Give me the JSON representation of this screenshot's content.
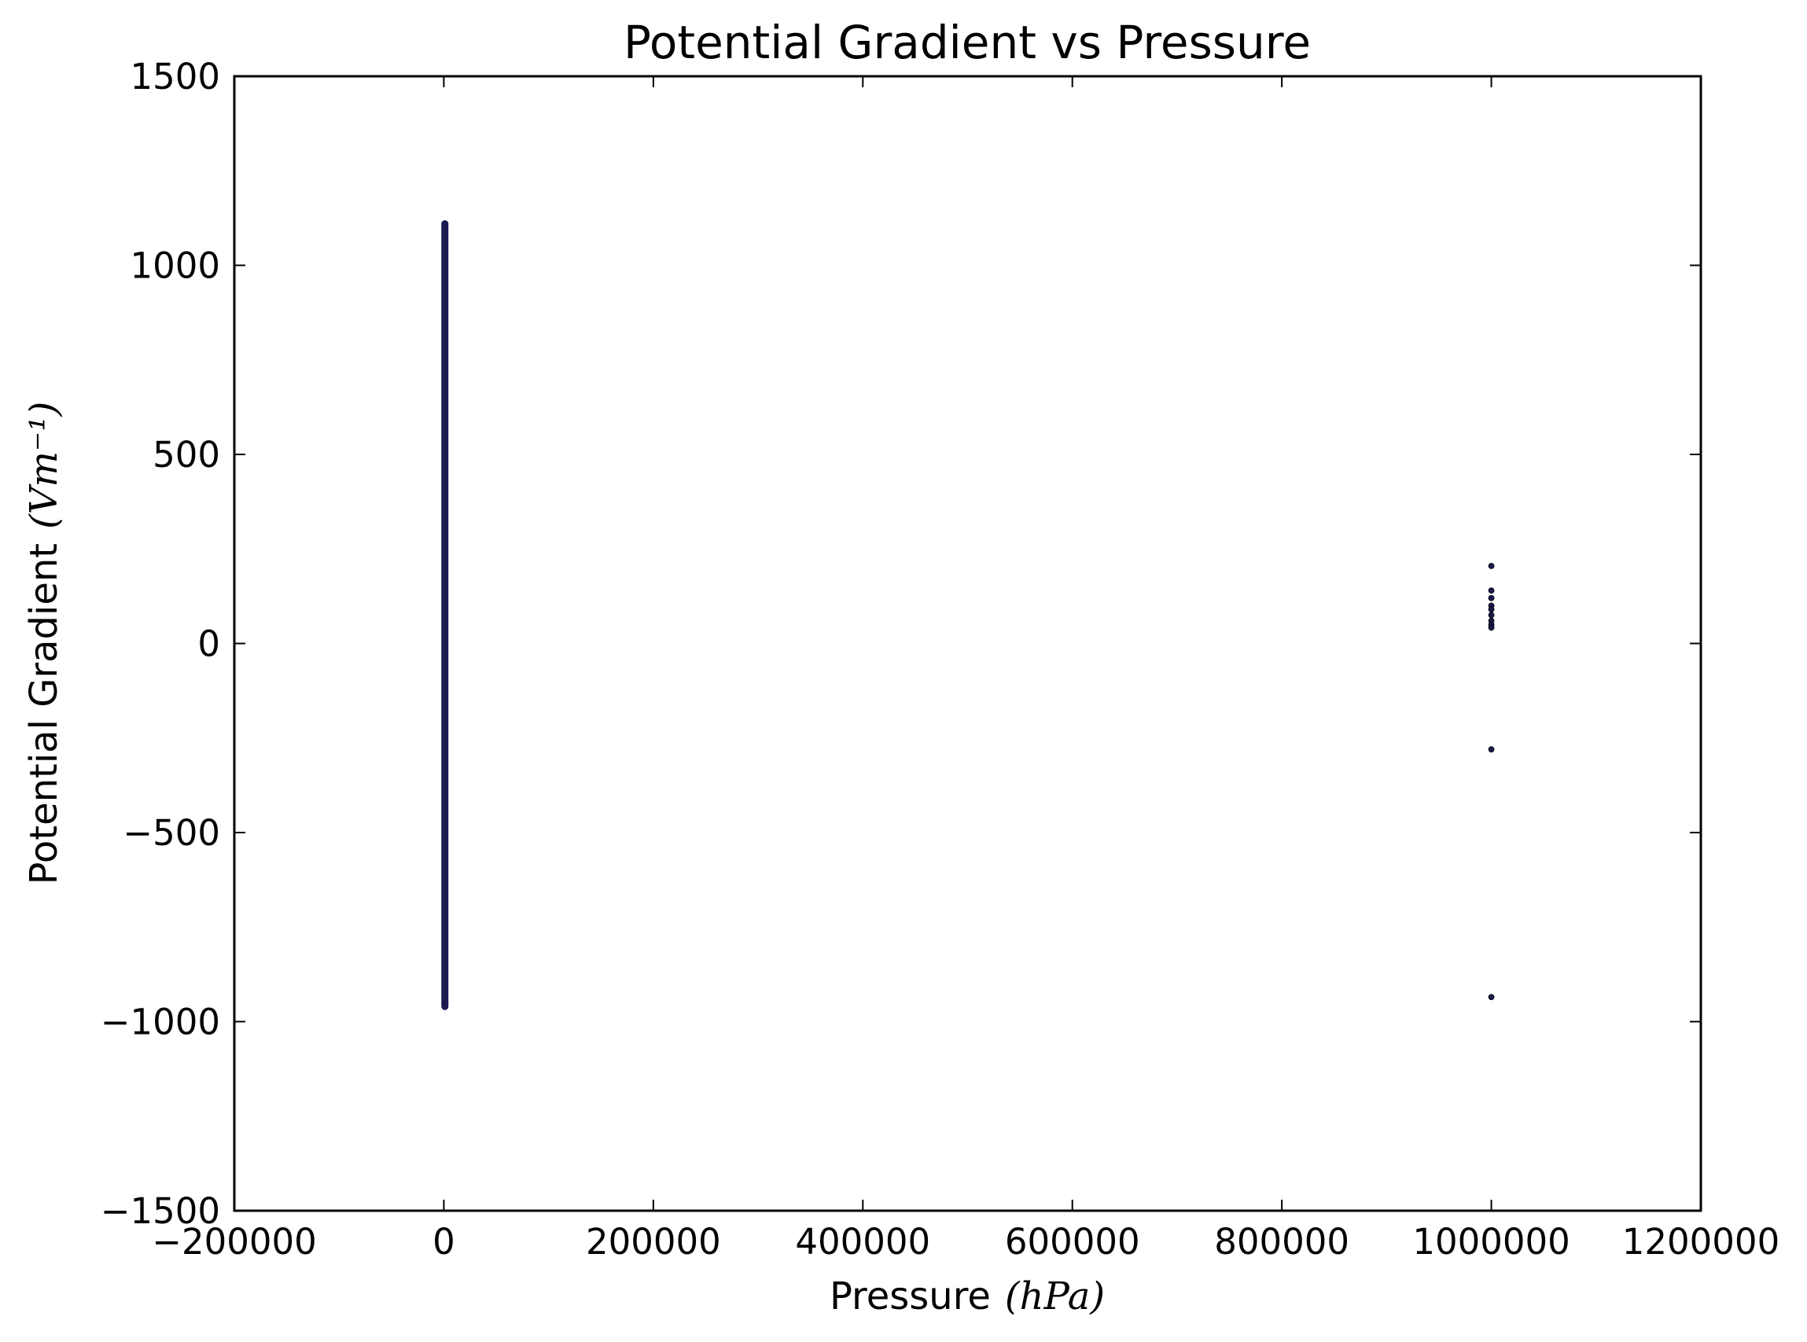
{
  "chart_data": {
    "type": "scatter",
    "title": "Potential Gradient vs Pressure",
    "xlabel": "Pressure",
    "xlabel_unit": "(hPa)",
    "ylabel": "Potential Gradient",
    "ylabel_unit": "(Vm⁻¹)",
    "xlim": [
      -200000,
      1200000
    ],
    "ylim": [
      -1500,
      1500
    ],
    "xticks": [
      -200000,
      0,
      200000,
      400000,
      600000,
      800000,
      1000000,
      1200000
    ],
    "xtick_labels": [
      "−200000",
      "0",
      "200000",
      "400000",
      "600000",
      "800000",
      "1000000",
      "1200000"
    ],
    "yticks": [
      -1500,
      -1000,
      -500,
      0,
      500,
      1000,
      1500
    ],
    "ytick_labels": [
      "−1500",
      "−1000",
      "−500",
      "0",
      "500",
      "1000",
      "1500"
    ],
    "grid": false,
    "series": [
      {
        "marker_color": "#1a1a4e",
        "main_cluster": {
          "x": 1000,
          "y_min": -960,
          "y_max": 1110
        },
        "points": [
          {
            "x": 1000000,
            "y": 205
          },
          {
            "x": 1000000,
            "y": 140
          },
          {
            "x": 1000000,
            "y": 120
          },
          {
            "x": 1000000,
            "y": 100
          },
          {
            "x": 1000000,
            "y": 90
          },
          {
            "x": 1000000,
            "y": 75
          },
          {
            "x": 1000000,
            "y": 60
          },
          {
            "x": 1000000,
            "y": 50
          },
          {
            "x": 1000000,
            "y": 42
          },
          {
            "x": 1000000,
            "y": -280
          },
          {
            "x": 1000000,
            "y": -935
          }
        ]
      }
    ]
  }
}
